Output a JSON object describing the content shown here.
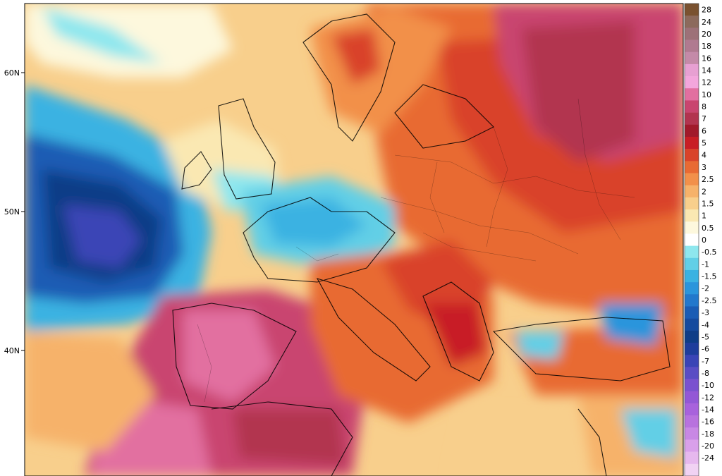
{
  "map": {
    "latitude_labels": [
      "60N",
      "50N",
      "40N"
    ]
  },
  "colorbar": {
    "entries": [
      {
        "label": "28",
        "color": "#7a5230"
      },
      {
        "label": "24",
        "color": "#8c6a5c"
      },
      {
        "label": "20",
        "color": "#9d7178"
      },
      {
        "label": "18",
        "color": "#b07a90"
      },
      {
        "label": "16",
        "color": "#c48aa8"
      },
      {
        "label": "14",
        "color": "#e7a0d2"
      },
      {
        "label": "12",
        "color": "#f3a6dc"
      },
      {
        "label": "10",
        "color": "#e26fa0"
      },
      {
        "label": "8",
        "color": "#c9456f"
      },
      {
        "label": "7",
        "color": "#b2344f"
      },
      {
        "label": "6",
        "color": "#a11a2b"
      },
      {
        "label": "5",
        "color": "#c81e25"
      },
      {
        "label": "4",
        "color": "#d9432a"
      },
      {
        "label": "3",
        "color": "#e86a33"
      },
      {
        "label": "2.5",
        "color": "#f2904a"
      },
      {
        "label": "2",
        "color": "#f6b26a"
      },
      {
        "label": "1.5",
        "color": "#f8cf8c"
      },
      {
        "label": "1",
        "color": "#fae8b2"
      },
      {
        "label": "0.5",
        "color": "#fdf8dd"
      },
      {
        "label": "0",
        "color": "#ffffff"
      },
      {
        "label": "-0.5",
        "color": "#8ee7ee"
      },
      {
        "label": "-1",
        "color": "#62cfe6"
      },
      {
        "label": "-1.5",
        "color": "#3ab2e2"
      },
      {
        "label": "-2",
        "color": "#2a95dc"
      },
      {
        "label": "-2.5",
        "color": "#2278cc"
      },
      {
        "label": "-3",
        "color": "#1a5cb4"
      },
      {
        "label": "-4",
        "color": "#154a9e"
      },
      {
        "label": "-5",
        "color": "#0e3d87"
      },
      {
        "label": "-6",
        "color": "#1e3d9c"
      },
      {
        "label": "-7",
        "color": "#3a44b6"
      },
      {
        "label": "-8",
        "color": "#5a4dc4"
      },
      {
        "label": "-10",
        "color": "#7a52cf"
      },
      {
        "label": "-12",
        "color": "#9358d6"
      },
      {
        "label": "-14",
        "color": "#a862dc"
      },
      {
        "label": "-16",
        "color": "#b872de"
      },
      {
        "label": "-18",
        "color": "#c888e4"
      },
      {
        "label": "-20",
        "color": "#d9a0ea"
      },
      {
        "label": "-24",
        "color": "#e6b8ee"
      },
      {
        "label": "",
        "color": "#f1d2f3"
      }
    ]
  }
}
